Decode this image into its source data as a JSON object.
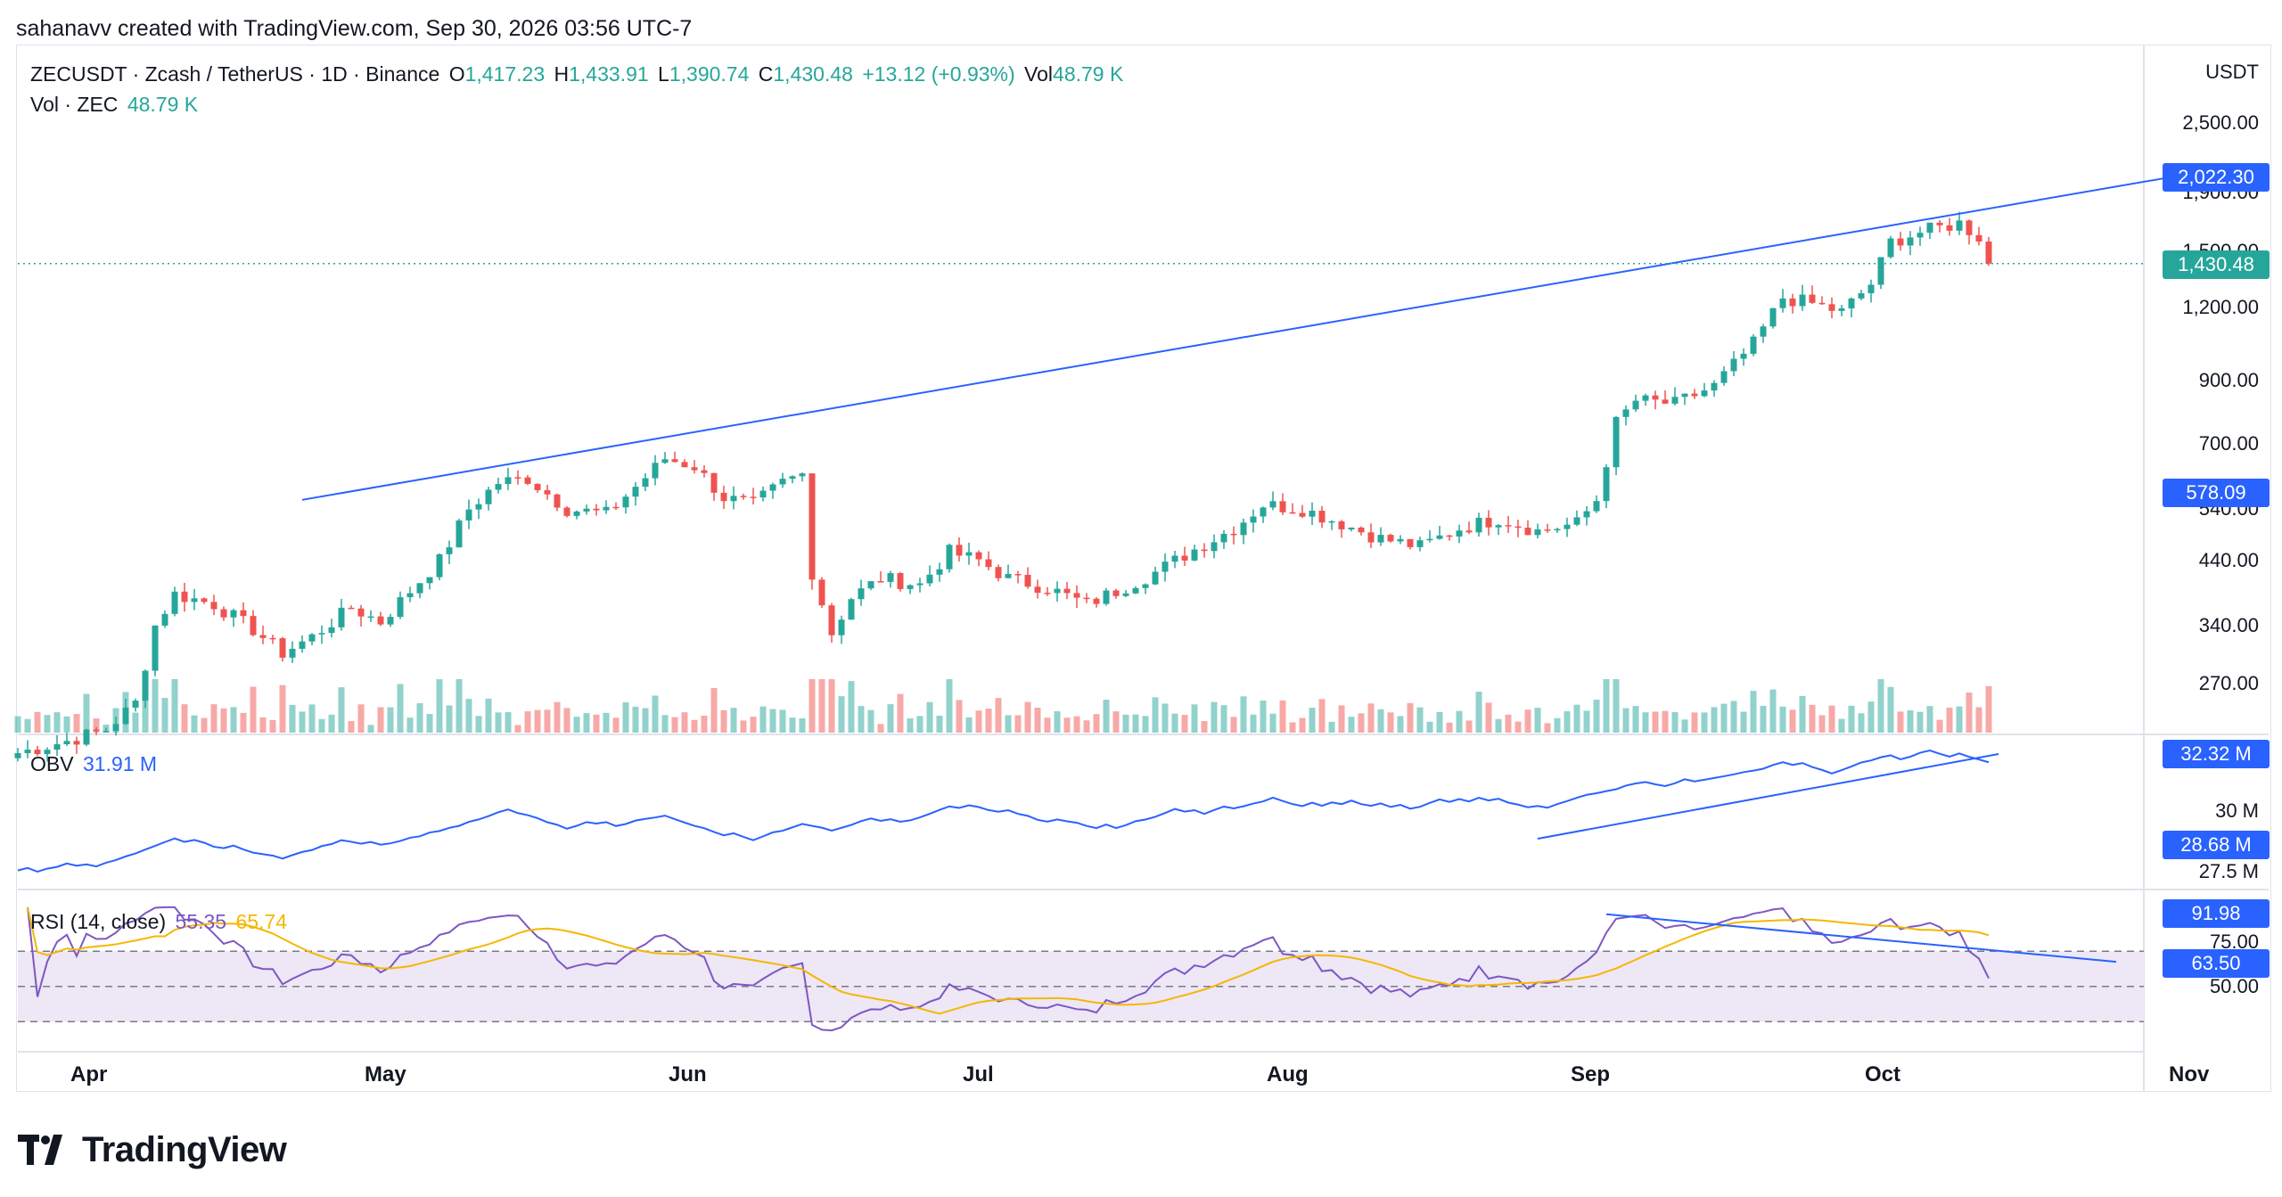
{
  "header": "sahanavv created with TradingView.com, Sep 30, 2026 03:56 UTC-7",
  "legend": {
    "symbol": "ZECUSDT · Zcash / TetherUS · 1D · Binance",
    "o_label": "O",
    "o": "1,417.23",
    "h_label": "H",
    "h": "1,433.91",
    "l_label": "L",
    "l": "1,390.74",
    "c_label": "C",
    "c": "1,430.48",
    "change": "+13.12 (+0.93%)",
    "vol_label": "Vol",
    "vol": "48.79 K",
    "vol2_label": "Vol · ZEC",
    "vol2": "48.79 K"
  },
  "obv_legend": {
    "label": "OBV",
    "value": "31.91 M"
  },
  "rsi_legend": {
    "label": "RSI (14, close)",
    "rsi": "55.35",
    "ma": "65.74"
  },
  "colors": {
    "up": "#26a69a",
    "down": "#ef5350",
    "line": "#2962ff",
    "rsi": "#7e57c2",
    "rsi_ma": "#f5b700",
    "band": "#ede7f6"
  },
  "chart_data": [
    {
      "type": "candlestick",
      "ylabel": "USDT",
      "yscale": "log",
      "y_ticks": [
        "2,500.00",
        "1,900.00",
        "1,500.00",
        "1,200.00",
        "900.00",
        "700.00",
        "540.00",
        "440.00",
        "340.00",
        "270.00"
      ],
      "price_tags": [
        "2,022.30",
        "1,430.48",
        "578.09"
      ],
      "x_ticks": [
        "Apr",
        "May",
        "Jun",
        "Jul",
        "Aug",
        "Sep",
        "Oct",
        "Nov"
      ],
      "resistance_trendline": {
        "from": [
          "Apr 23",
          560
        ],
        "to": [
          "Oct 31",
          2022.3
        ]
      },
      "current_price": 1430.48,
      "approx_closes": [
        [
          "Mar 25",
          205
        ],
        [
          "Mar 30",
          215
        ],
        [
          "Apr 3",
          225
        ],
        [
          "Apr 6",
          250
        ],
        [
          "Apr 8",
          340
        ],
        [
          "Apr 10",
          385
        ],
        [
          "Apr 14",
          370
        ],
        [
          "Apr 18",
          335
        ],
        [
          "Apr 21",
          305
        ],
        [
          "Apr 24",
          325
        ],
        [
          "Apr 28",
          365
        ],
        [
          "May 1",
          345
        ],
        [
          "May 4",
          390
        ],
        [
          "May 7",
          440
        ],
        [
          "May 10",
          540
        ],
        [
          "May 13",
          600
        ],
        [
          "May 16",
          610
        ],
        [
          "May 20",
          540
        ],
        [
          "May 24",
          530
        ],
        [
          "May 27",
          590
        ],
        [
          "May 30",
          660
        ],
        [
          "Jun 2",
          640
        ],
        [
          "Jun 5",
          565
        ],
        [
          "Jun 8",
          550
        ],
        [
          "Jun 11",
          600
        ],
        [
          "Jun 13",
          620
        ],
        [
          "Jun 14",
          420
        ],
        [
          "Jun 16",
          330
        ],
        [
          "Jun 18",
          380
        ],
        [
          "Jun 21",
          410
        ],
        [
          "Jun 25",
          400
        ],
        [
          "Jun 28",
          455
        ],
        [
          "Jul 1",
          440
        ],
        [
          "Jul 4",
          410
        ],
        [
          "Jul 8",
          395
        ],
        [
          "Jul 12",
          370
        ],
        [
          "Jul 15",
          390
        ],
        [
          "Jul 19",
          420
        ],
        [
          "Jul 23",
          460
        ],
        [
          "Jul 27",
          500
        ],
        [
          "Jul 30",
          550
        ],
        [
          "Aug 3",
          540
        ],
        [
          "Aug 7",
          510
        ],
        [
          "Aug 11",
          480
        ],
        [
          "Aug 15",
          465
        ],
        [
          "Aug 19",
          500
        ],
        [
          "Aug 23",
          520
        ],
        [
          "Aug 27",
          495
        ],
        [
          "Aug 31",
          510
        ],
        [
          "Sep 2",
          560
        ],
        [
          "Sep 4",
          760
        ],
        [
          "Sep 6",
          830
        ],
        [
          "Sep 10",
          820
        ],
        [
          "Sep 14",
          880
        ],
        [
          "Sep 18",
          1040
        ],
        [
          "Sep 21",
          1250
        ],
        [
          "Sep 24",
          1220
        ],
        [
          "Sep 27",
          1180
        ],
        [
          "Sep 30",
          1320
        ],
        [
          "Oct 2",
          1560
        ],
        [
          "Oct 5",
          1620
        ],
        [
          "Oct 9",
          1680
        ],
        [
          "Oct 11",
          1590
        ],
        [
          "Oct 12",
          1430.48
        ]
      ]
    },
    {
      "type": "line",
      "series": [
        {
          "name": "OBV",
          "current": 31.91
        }
      ],
      "y_ticks": [
        "30 M",
        "27.5 M"
      ],
      "value_tags": [
        "32.32 M",
        "28.68 M"
      ],
      "support_trendline": true
    },
    {
      "type": "line",
      "series": [
        {
          "name": "RSI",
          "current": 55.35
        },
        {
          "name": "MA",
          "current": 65.74
        }
      ],
      "y_ticks": [
        "75.00",
        "50.00"
      ],
      "value_tags": [
        "91.98",
        "63.50"
      ],
      "bands": [
        70,
        50,
        30
      ],
      "descending_trendline": true
    }
  ],
  "footer": {
    "brand": "TradingView"
  }
}
